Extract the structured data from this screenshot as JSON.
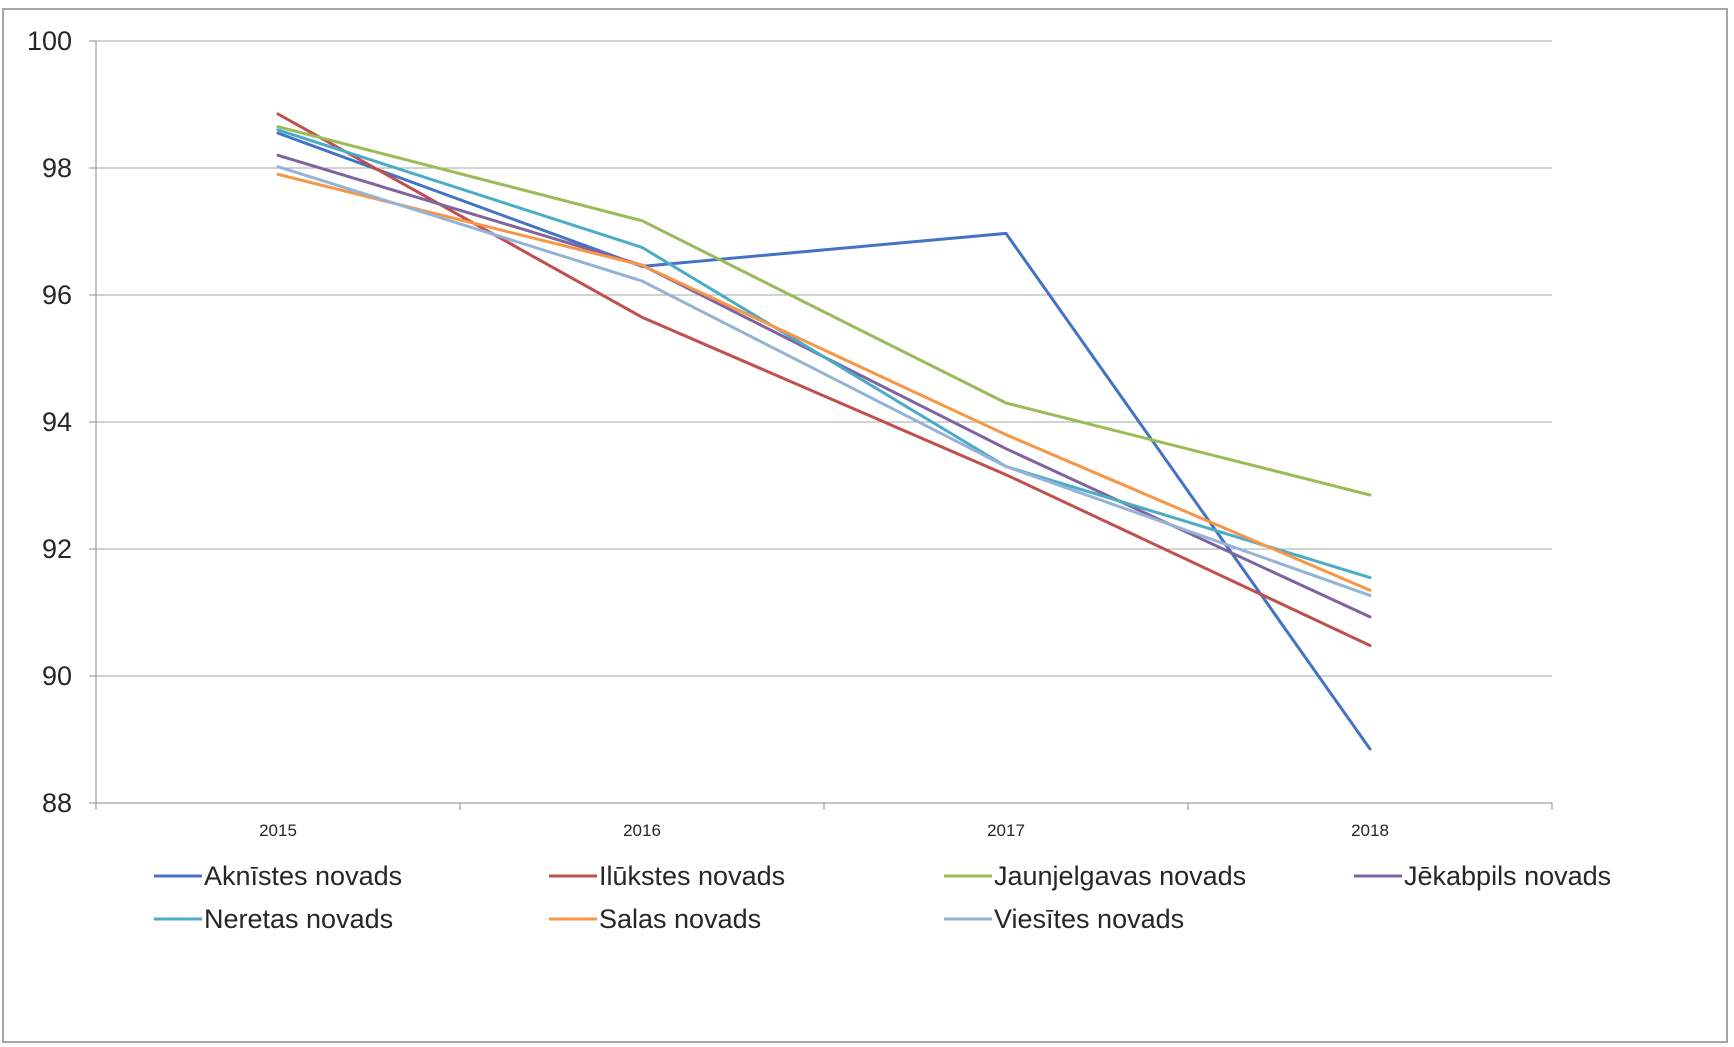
{
  "chart_data": {
    "type": "line",
    "title": "",
    "xlabel": "",
    "ylabel": "",
    "x": [
      "2015",
      "2016",
      "2017",
      "2018"
    ],
    "ylim": [
      88,
      100
    ],
    "yticks": [
      "100",
      "98",
      "96",
      "94",
      "92",
      "90",
      "88"
    ],
    "grid": "horizontal",
    "legend_position": "bottom",
    "series": [
      {
        "name": "Aknīstes novads",
        "color": "#4472c4",
        "values": [
          98.55,
          96.45,
          96.97,
          88.85
        ]
      },
      {
        "name": "Ilūkstes novads",
        "color": "#c0504d",
        "values": [
          98.85,
          95.65,
          93.17,
          90.48
        ]
      },
      {
        "name": "Jaunjelgavas novads",
        "color": "#9bbb59",
        "values": [
          98.65,
          97.17,
          94.3,
          92.85
        ]
      },
      {
        "name": "Jēkabpils novads",
        "color": "#8064a2",
        "values": [
          98.2,
          96.47,
          93.58,
          90.93
        ]
      },
      {
        "name": "Neretas novads",
        "color": "#4bacc6",
        "values": [
          98.6,
          96.75,
          93.3,
          91.55
        ]
      },
      {
        "name": "Salas novads",
        "color": "#f79646",
        "values": [
          97.9,
          96.47,
          93.8,
          91.35
        ]
      },
      {
        "name": "Viesītes novads",
        "color": "#95b3d7",
        "values": [
          98.02,
          96.22,
          93.3,
          91.27
        ]
      }
    ]
  }
}
